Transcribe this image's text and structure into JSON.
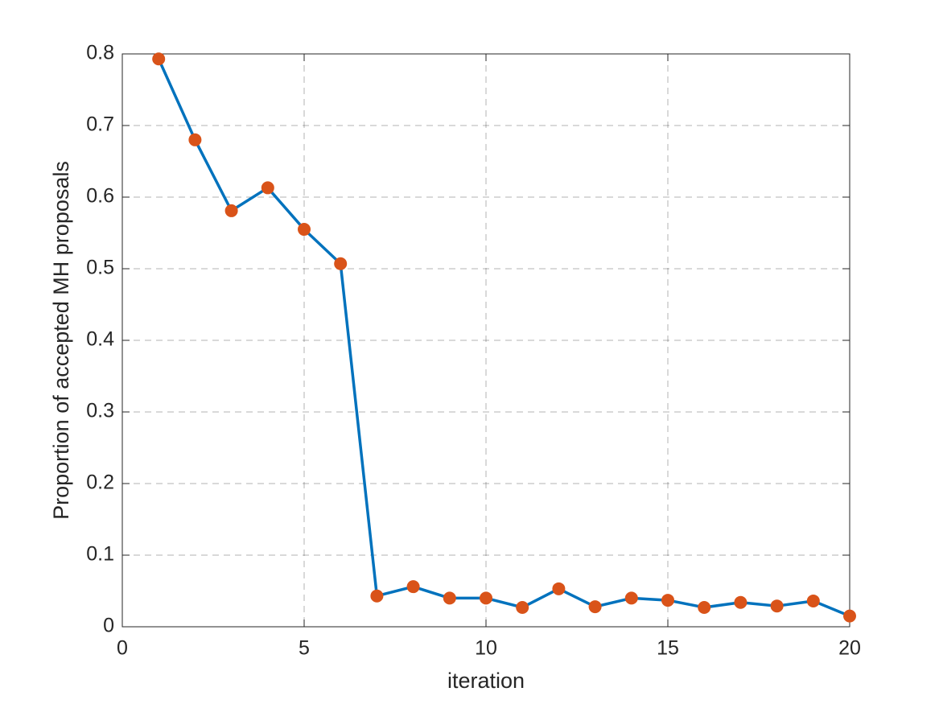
{
  "chart_data": {
    "type": "line",
    "xlabel": "iteration",
    "ylabel": "Proportion of accepted MH proposals",
    "x": [
      1,
      2,
      3,
      4,
      5,
      6,
      7,
      8,
      9,
      10,
      11,
      12,
      13,
      14,
      15,
      16,
      17,
      18,
      19,
      20
    ],
    "values": [
      0.793,
      0.68,
      0.581,
      0.613,
      0.555,
      0.507,
      0.043,
      0.056,
      0.04,
      0.04,
      0.027,
      0.053,
      0.028,
      0.04,
      0.037,
      0.027,
      0.034,
      0.029,
      0.036,
      0.015
    ],
    "color": "#0072bd",
    "marker_color": "#d95319",
    "xlim": [
      0,
      20
    ],
    "xticks": [
      0,
      5,
      10,
      15,
      20
    ],
    "ylim": [
      0,
      0.8
    ],
    "yticks": [
      0,
      0.1,
      0.2,
      0.3,
      0.4,
      0.5,
      0.6,
      0.7,
      0.8
    ],
    "grid": true
  }
}
